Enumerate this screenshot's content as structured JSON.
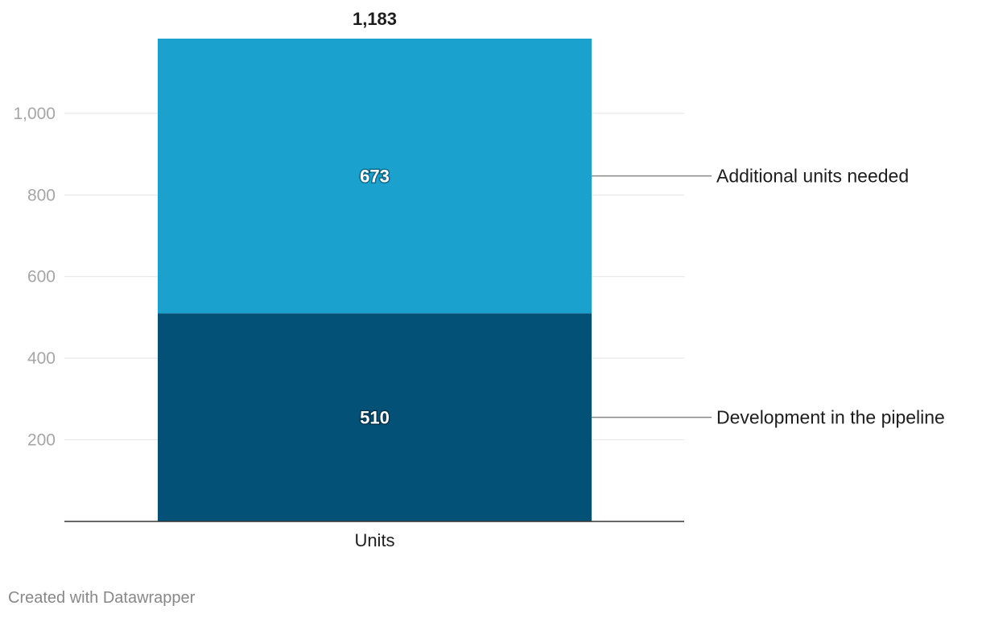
{
  "chart_data": {
    "type": "bar",
    "stacked": true,
    "categories": [
      "Units"
    ],
    "series": [
      {
        "name": "Development in the pipeline",
        "values": [
          510
        ],
        "color": "#035177"
      },
      {
        "name": "Additional units needed",
        "values": [
          673
        ],
        "color": "#1aa1ce"
      }
    ],
    "totals": [
      1183
    ],
    "total_labels": [
      "1,183"
    ],
    "segment_labels": [
      [
        "510"
      ],
      [
        "673"
      ]
    ],
    "yticks": [
      200,
      400,
      600,
      800,
      1000
    ],
    "ytick_labels": [
      "200",
      "400",
      "600",
      "800",
      "1,000"
    ],
    "ylim": [
      0,
      1183
    ],
    "grid": true,
    "legend": "right, inline labels",
    "title": "",
    "xlabel": "",
    "ylabel": ""
  },
  "colors": {
    "grid": "#e2e2e2",
    "axis": "#333333",
    "tick_text": "#a6a6a6",
    "text": "#1d1d1d",
    "connector": "#888888"
  },
  "footer": {
    "credit": "Created with Datawrapper"
  }
}
